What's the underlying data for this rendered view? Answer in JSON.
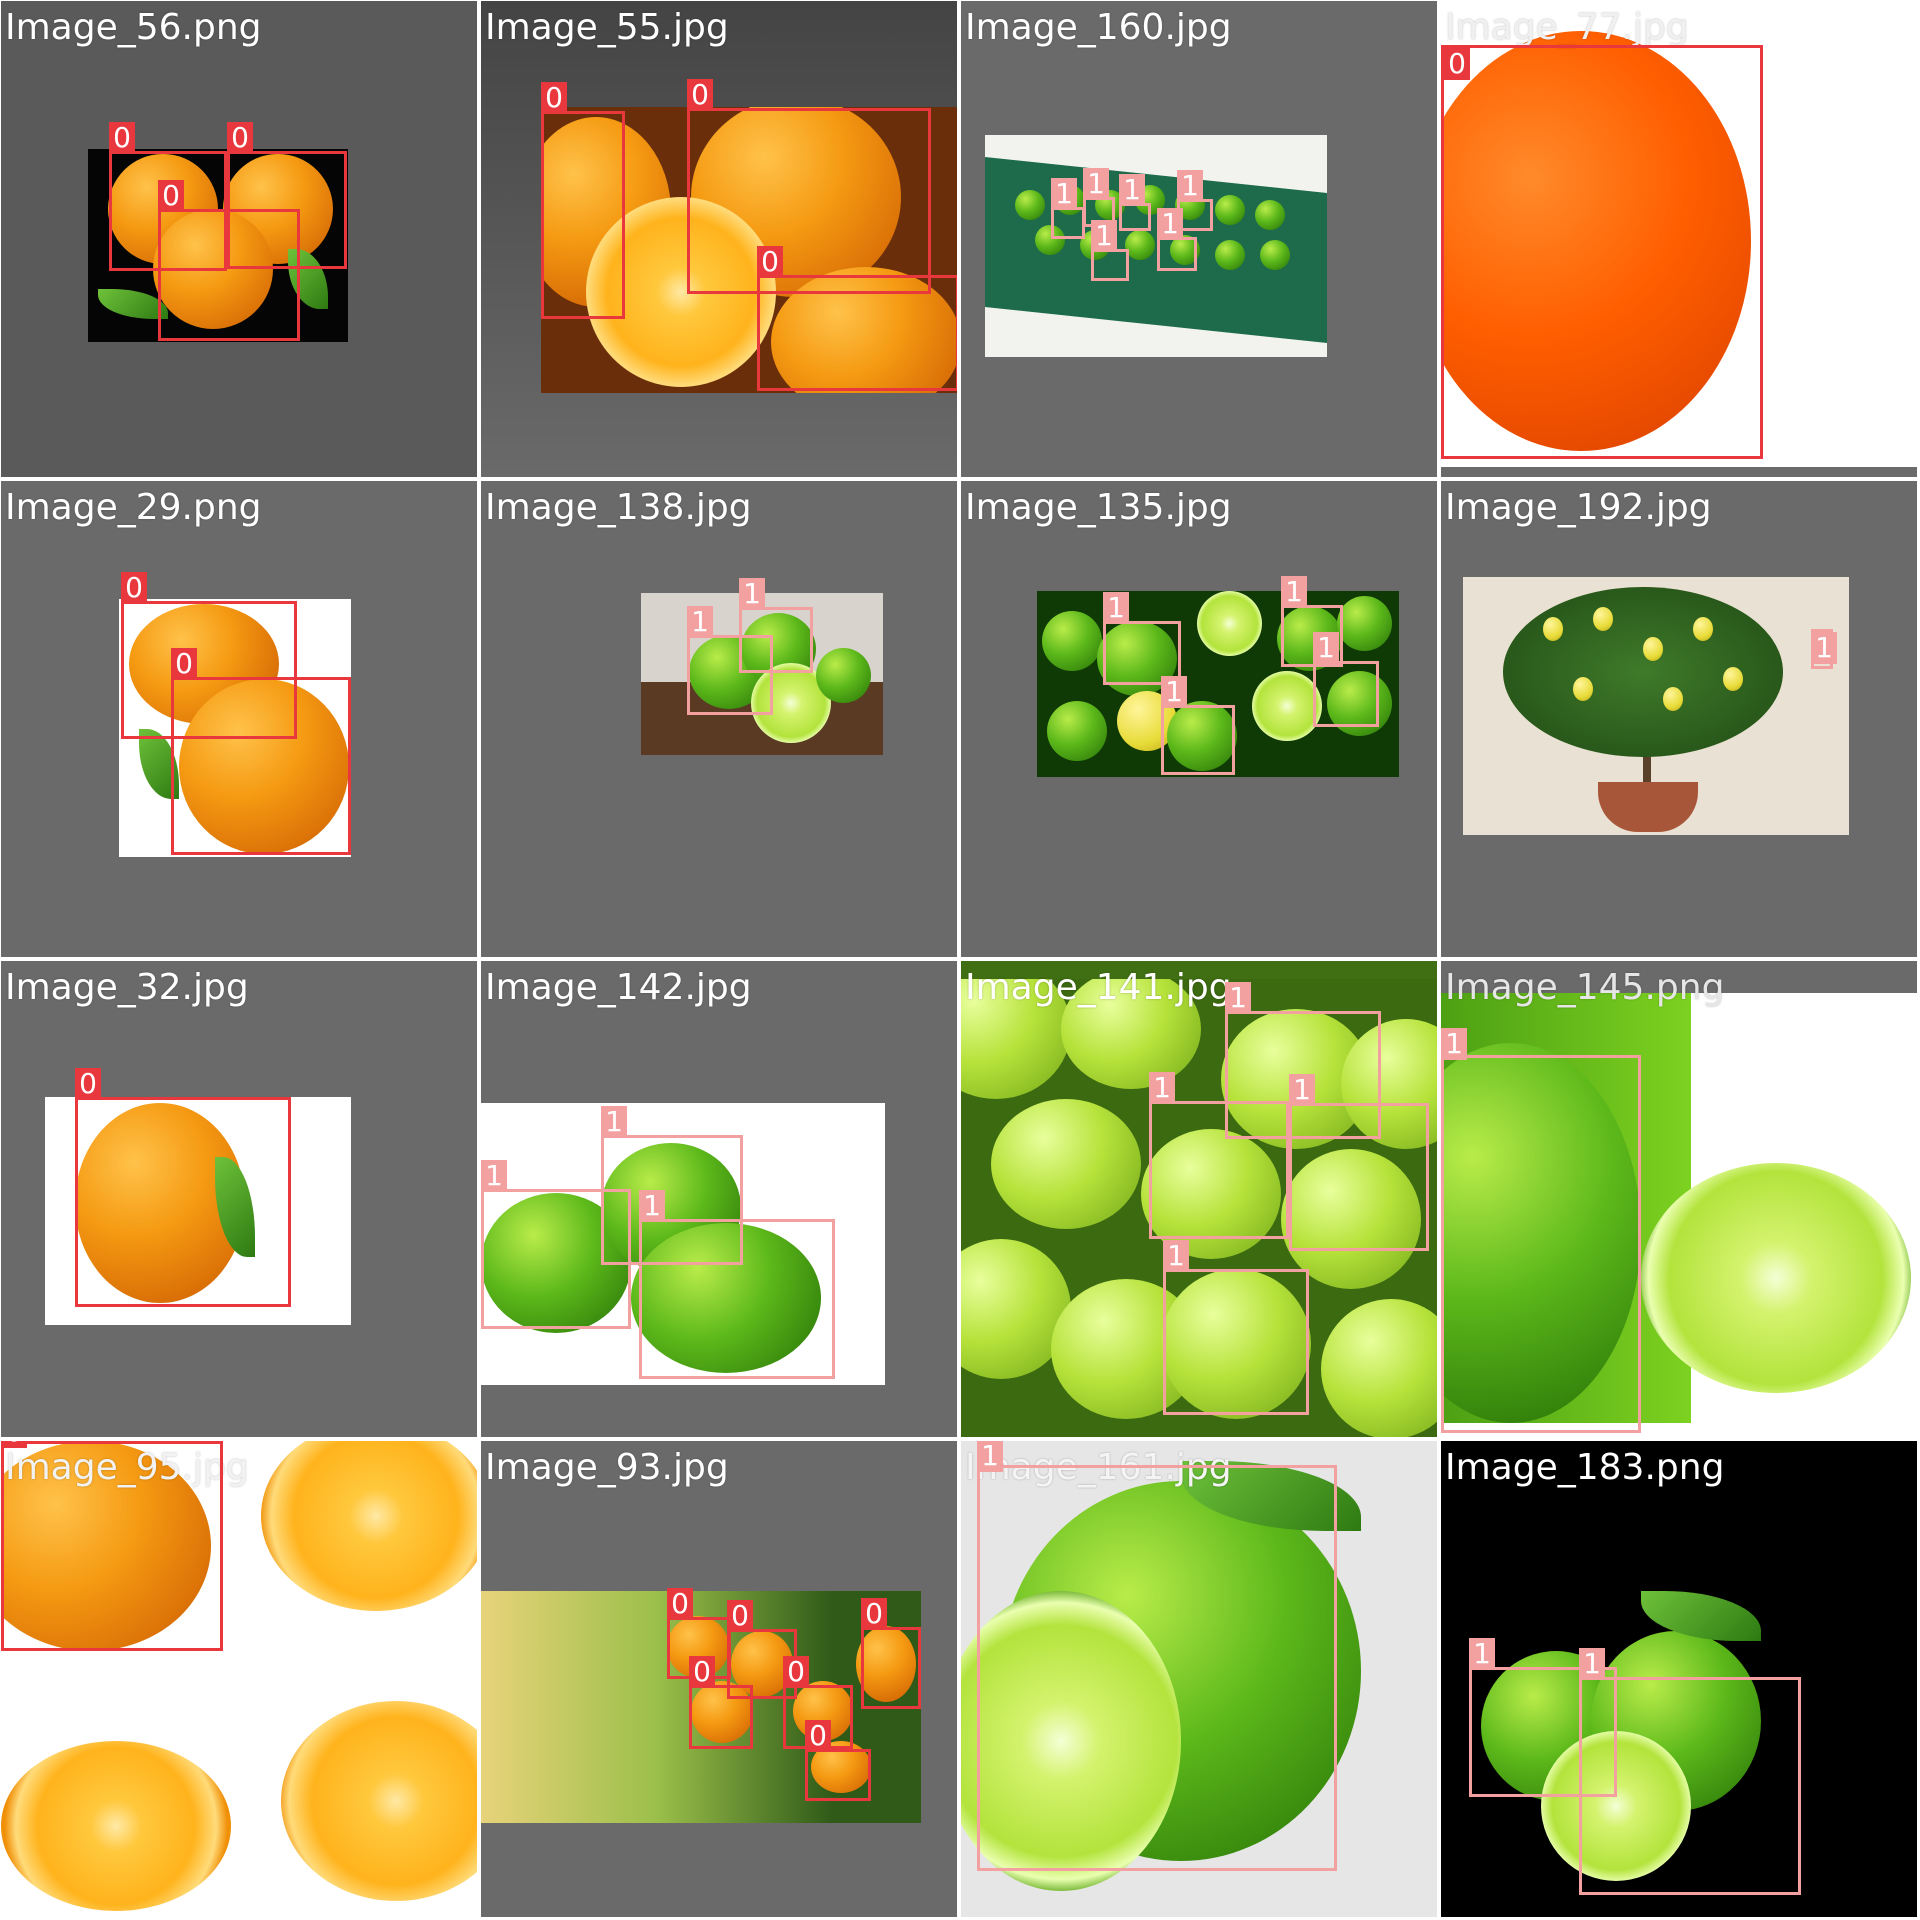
{
  "mosaic": {
    "class_colors": {
      "0": "#e8383d",
      "1": "#f2a0a0"
    },
    "tiles": [
      {
        "title": "Image_56.png",
        "labels": [
          "0",
          "0",
          "0"
        ]
      },
      {
        "title": "Image_55.jpg",
        "labels": [
          "0",
          "0",
          "0"
        ]
      },
      {
        "title": "Image_160.jpg",
        "labels": [
          "1",
          "1",
          "1",
          "1",
          "1",
          "1"
        ]
      },
      {
        "title": "Image_77.jpg",
        "labels": [
          "0"
        ]
      },
      {
        "title": "Image_29.png",
        "labels": [
          "0",
          "0"
        ]
      },
      {
        "title": "Image_138.jpg",
        "labels": [
          "1",
          "1"
        ]
      },
      {
        "title": "Image_135.jpg",
        "labels": [
          "1",
          "1",
          "1",
          "1"
        ]
      },
      {
        "title": "Image_192.jpg",
        "labels": [
          "1"
        ]
      },
      {
        "title": "Image_32.jpg",
        "labels": [
          "0"
        ]
      },
      {
        "title": "Image_142.jpg",
        "labels": [
          "1",
          "1",
          "1"
        ]
      },
      {
        "title": "Image_141.jpg",
        "labels": [
          "1",
          "1",
          "1",
          "1"
        ]
      },
      {
        "title": "Image_145.png",
        "labels": [
          "1"
        ]
      },
      {
        "title": "Image_95.jpg",
        "labels": [
          "0"
        ]
      },
      {
        "title": "Image_93.jpg",
        "labels": [
          "0",
          "0",
          "0",
          "0",
          "0",
          "0"
        ]
      },
      {
        "title": "Image_161.jpg",
        "labels": [
          "1"
        ]
      },
      {
        "title": "Image_183.png",
        "labels": [
          "1",
          "1"
        ]
      }
    ]
  }
}
